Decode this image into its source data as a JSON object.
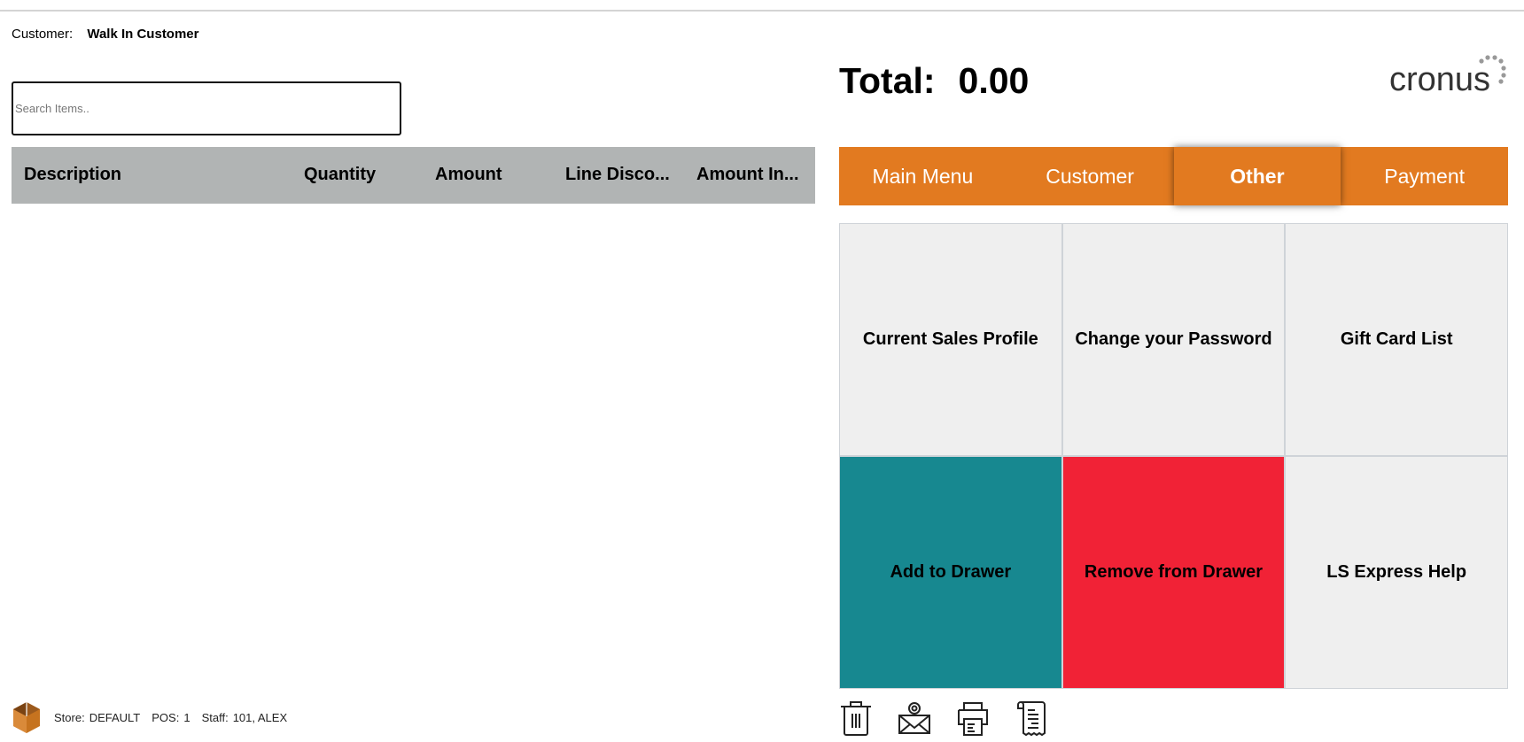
{
  "customer": {
    "label": "Customer:",
    "name": "Walk In Customer"
  },
  "search": {
    "placeholder": "Search Items..",
    "value": ""
  },
  "table": {
    "columns": [
      "Description",
      "Quantity",
      "Amount",
      "Line Disco...",
      "Amount In..."
    ],
    "rows": []
  },
  "total": {
    "label": "Total:",
    "value": "0.00"
  },
  "logo": {
    "text": "cronus"
  },
  "tabs": [
    {
      "label": "Main Menu"
    },
    {
      "label": "Customer"
    },
    {
      "label": "Other",
      "active": true
    },
    {
      "label": "Payment"
    }
  ],
  "tiles": [
    {
      "label": "Current Sales Profile",
      "color": "#efefef"
    },
    {
      "label": "Change your Password",
      "color": "#efefef"
    },
    {
      "label": "Gift Card List",
      "color": "#efefef"
    },
    {
      "label": "Add to Drawer",
      "color": "#178890"
    },
    {
      "label": "Remove from Drawer",
      "color": "#f12236"
    },
    {
      "label": "LS Express Help",
      "color": "#efefef"
    }
  ],
  "actions": [
    {
      "icon": "trash-icon"
    },
    {
      "icon": "email-icon"
    },
    {
      "icon": "printer-icon"
    },
    {
      "icon": "receipt-icon"
    }
  ],
  "footer": {
    "store_label": "Store:",
    "store": "DEFAULT",
    "pos_label": "POS:",
    "pos": "1",
    "staff_label": "Staff:",
    "staff": "101, ALEX"
  },
  "colors": {
    "accent": "#e27a20",
    "header_bg": "#b1b4b4",
    "teal": "#178890",
    "red": "#f12236"
  }
}
